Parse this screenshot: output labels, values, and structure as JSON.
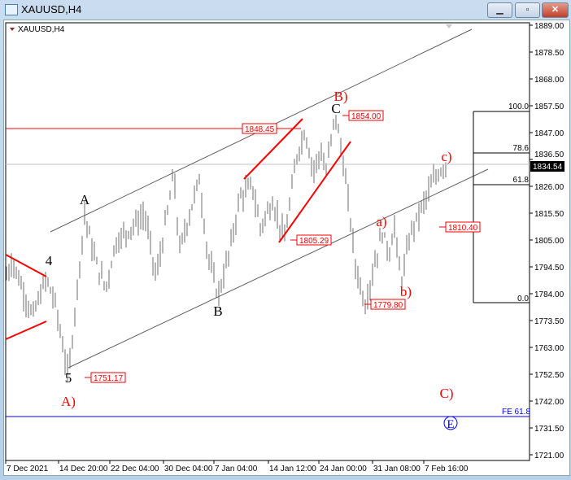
{
  "window": {
    "title": "XAUUSD,H4",
    "buttons": [
      "minimize",
      "maximize",
      "close"
    ]
  },
  "chart": {
    "symbol_label": "XAUUSD,H4",
    "current_price": "1834.54"
  },
  "colors": {
    "bars": "#6e6e6e",
    "annotation": "#ff0000",
    "fe_line": "#0000ff",
    "channel": "#606060"
  },
  "chart_data": {
    "type": "bar",
    "ylim": [
      1721,
      1889
    ],
    "y_ticks": [
      "1889.00",
      "1878.50",
      "1868.00",
      "1857.50",
      "1847.00",
      "1836.50",
      "1826.00",
      "1815.50",
      "1805.00",
      "1794.50",
      "1784.00",
      "1773.50",
      "1763.00",
      "1752.50",
      "1742.00",
      "1731.50",
      "1721.00"
    ],
    "x_ticks": [
      "7 Dec 2021",
      "14 Dec 20:00",
      "22 Dec 04:00",
      "30 Dec 04:00",
      "7 Jan 04:00",
      "14 Jan 12:00",
      "24 Jan 00:00",
      "31 Jan 08:00",
      "7 Feb 16:00"
    ],
    "price_swings": [
      1790,
      1797,
      1775,
      1790,
      1780,
      1751.17,
      1815,
      1797,
      1786,
      1804,
      1815,
      1790,
      1831,
      1800,
      1829,
      1800,
      1783,
      1800,
      1822,
      1826,
      1810,
      1820,
      1805.29,
      1838,
      1848,
      1832,
      1840,
      1830,
      1854,
      1840,
      1815,
      1795,
      1779.8,
      1795,
      1808,
      1800,
      1810,
      1788,
      1808,
      1815,
      1826,
      1832,
      1834.54
    ],
    "price_labels": [
      "1848.45",
      "1854.00",
      "1805.29",
      "1779.80",
      "1810.40",
      "1751.17"
    ],
    "fib_levels": [
      "100.0",
      "78.6",
      "61.8",
      "0.0"
    ],
    "fe_label": "FE 61.8",
    "wave_labels_black": [
      "A",
      "4",
      "5",
      "B",
      "C"
    ],
    "wave_labels_red": [
      "A)",
      "B)",
      "a)",
      "b)",
      "c)",
      "C)"
    ],
    "circled_label": "E"
  }
}
